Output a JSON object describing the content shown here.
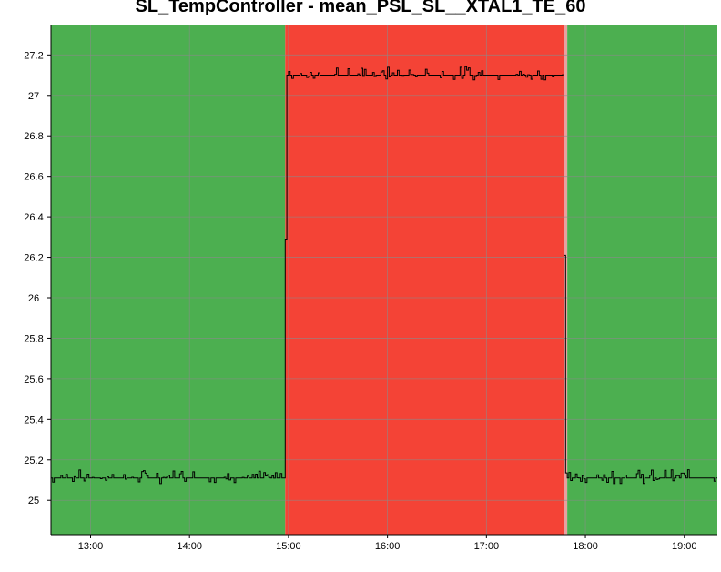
{
  "chart_data": {
    "type": "line",
    "title": "SL_TempController - mean_PSL_SL__XTAL1_TE_60",
    "xlabel": "",
    "ylabel": "",
    "x_range": [
      "12:36",
      "19:20"
    ],
    "ylim": [
      24.83,
      27.35
    ],
    "x_ticks": [
      "13:00",
      "14:00",
      "15:00",
      "16:00",
      "17:00",
      "18:00",
      "19:00"
    ],
    "y_ticks": [
      25,
      25.2,
      25.4,
      25.6,
      25.8,
      26,
      26.2,
      26.4,
      26.6,
      26.8,
      27,
      27.2
    ],
    "grid": true,
    "background_bands": [
      {
        "start": "12:36",
        "end": "14:58",
        "status": "ok",
        "color": "#4caf50"
      },
      {
        "start": "14:58",
        "end": "17:47",
        "status": "alarm",
        "color": "#f44336"
      },
      {
        "start": "17:47",
        "end": "17:49",
        "status": "transition",
        "color": "#e8a0a0"
      },
      {
        "start": "17:49",
        "end": "19:20",
        "status": "ok",
        "color": "#4caf50"
      }
    ],
    "series": [
      {
        "color": "#000000",
        "segments": [
          {
            "start": "12:36",
            "end": "14:58",
            "value": 25.11,
            "noise": 0.035
          },
          {
            "start": "14:58",
            "end": "14:59",
            "value": 26.29,
            "noise": 0
          },
          {
            "start": "14:59",
            "end": "17:47",
            "value": 27.1,
            "noise": 0.035
          },
          {
            "start": "17:47",
            "end": "17:48",
            "value": 26.21,
            "noise": 0
          },
          {
            "start": "17:48",
            "end": "19:20",
            "value": 25.11,
            "noise": 0.035
          }
        ]
      }
    ]
  }
}
